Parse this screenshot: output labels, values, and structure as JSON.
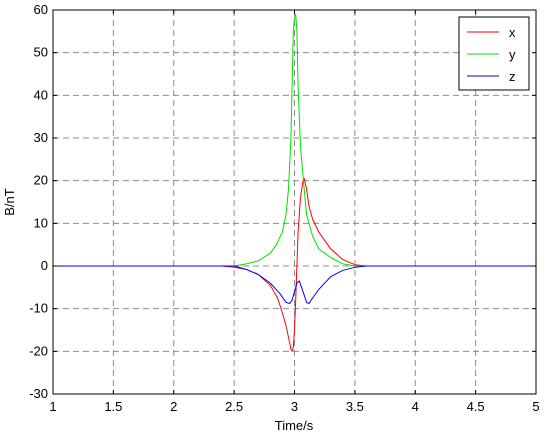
{
  "chart_data": {
    "type": "line",
    "xlabel": "Time/s",
    "ylabel": "B/nT",
    "xlim": [
      1,
      5
    ],
    "ylim": [
      -30,
      60
    ],
    "xticks": [
      1,
      1.5,
      2,
      2.5,
      3,
      3.5,
      4,
      4.5,
      5
    ],
    "xtick_labels": [
      "1",
      "1.5",
      "2",
      "2.5",
      "3",
      "3.5",
      "4",
      "4.5",
      "5"
    ],
    "yticks": [
      -30,
      -20,
      -10,
      0,
      10,
      20,
      30,
      40,
      50,
      60
    ],
    "ytick_labels": [
      "-30",
      "-20",
      "-10",
      "0",
      "10",
      "20",
      "30",
      "40",
      "50",
      "60"
    ],
    "grid": true,
    "legend_position": "top-right",
    "series": [
      {
        "name": "x",
        "color": "#ff0000",
        "points": [
          [
            1,
            0
          ],
          [
            2.4,
            0
          ],
          [
            2.5,
            -0.3
          ],
          [
            2.6,
            -0.8
          ],
          [
            2.7,
            -2
          ],
          [
            2.8,
            -4.5
          ],
          [
            2.86,
            -7.5
          ],
          [
            2.9,
            -11
          ],
          [
            2.93,
            -14
          ],
          [
            2.96,
            -18
          ],
          [
            2.97,
            -19.5
          ],
          [
            2.98,
            -20
          ],
          [
            2.99,
            -19
          ],
          [
            3.0,
            -15
          ],
          [
            3.01,
            -8
          ],
          [
            3.02,
            0
          ],
          [
            3.03,
            8
          ],
          [
            3.05,
            16
          ],
          [
            3.07,
            20
          ],
          [
            3.08,
            20.5
          ],
          [
            3.1,
            18
          ],
          [
            3.12,
            14
          ],
          [
            3.15,
            11
          ],
          [
            3.2,
            8
          ],
          [
            3.25,
            6
          ],
          [
            3.3,
            4
          ],
          [
            3.4,
            1.5
          ],
          [
            3.5,
            0.3
          ],
          [
            3.6,
            0
          ],
          [
            5,
            0
          ]
        ]
      },
      {
        "name": "y",
        "color": "#00e000",
        "points": [
          [
            1,
            0
          ],
          [
            2.5,
            0
          ],
          [
            2.6,
            0.5
          ],
          [
            2.7,
            1.2
          ],
          [
            2.8,
            3
          ],
          [
            2.85,
            5
          ],
          [
            2.9,
            8
          ],
          [
            2.93,
            12
          ],
          [
            2.95,
            18
          ],
          [
            2.97,
            30
          ],
          [
            2.98,
            42
          ],
          [
            2.99,
            55
          ],
          [
            3.0,
            58
          ],
          [
            3.01,
            59
          ],
          [
            3.02,
            55
          ],
          [
            3.03,
            42
          ],
          [
            3.05,
            28
          ],
          [
            3.08,
            18
          ],
          [
            3.1,
            12
          ],
          [
            3.15,
            7
          ],
          [
            3.2,
            4
          ],
          [
            3.3,
            2
          ],
          [
            3.4,
            0.5
          ],
          [
            3.5,
            0
          ],
          [
            5,
            0
          ]
        ]
      },
      {
        "name": "z",
        "color": "#0000ff",
        "points": [
          [
            1,
            0
          ],
          [
            2.5,
            0
          ],
          [
            2.6,
            -0.8
          ],
          [
            2.7,
            -2
          ],
          [
            2.8,
            -4
          ],
          [
            2.88,
            -6.5
          ],
          [
            2.93,
            -8.5
          ],
          [
            2.96,
            -8.8
          ],
          [
            2.98,
            -8
          ],
          [
            3.0,
            -6
          ],
          [
            3.02,
            -4
          ],
          [
            3.04,
            -3.5
          ],
          [
            3.07,
            -6
          ],
          [
            3.1,
            -8.5
          ],
          [
            3.12,
            -8.8
          ],
          [
            3.15,
            -7.5
          ],
          [
            3.2,
            -5.5
          ],
          [
            3.3,
            -2.5
          ],
          [
            3.4,
            -1
          ],
          [
            3.5,
            -0.3
          ],
          [
            3.6,
            0
          ],
          [
            5,
            0
          ]
        ]
      }
    ]
  }
}
